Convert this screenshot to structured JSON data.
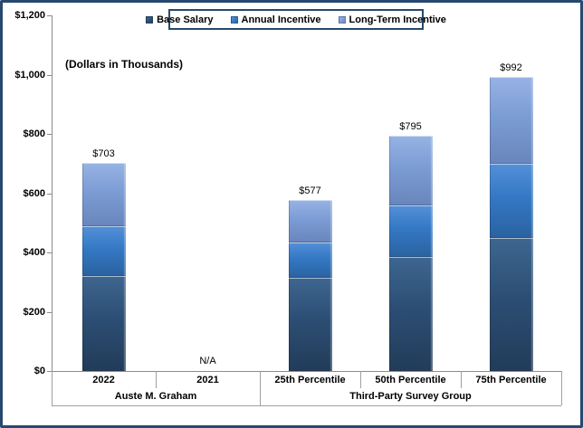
{
  "frame": {
    "border_color": "#27496F",
    "background": "#FFFFFF"
  },
  "units_note": "(Dollars in Thousands)",
  "chart_data": {
    "type": "bar",
    "stacked": true,
    "title": "",
    "ylabel": "(Dollars in Thousands)",
    "ylim": [
      0,
      1200
    ],
    "grid": false,
    "legend_position": "top",
    "y_axis_ticks": [
      {
        "value": 0,
        "label": "$0"
      },
      {
        "value": 200,
        "label": "$200"
      },
      {
        "value": 400,
        "label": "$400"
      },
      {
        "value": 600,
        "label": "$600"
      },
      {
        "value": 800,
        "label": "$800"
      },
      {
        "value": 1000,
        "label": "$1,000"
      },
      {
        "value": 1200,
        "label": "$1,200"
      }
    ],
    "groups": [
      {
        "label": "Auste M. Graham",
        "categories": [
          "2022",
          "2021"
        ]
      },
      {
        "label": "Third-Party Survey Group",
        "categories": [
          "25th Percentile",
          "50th Percentile",
          "75th Percentile"
        ]
      }
    ],
    "categories": [
      "2022",
      "2021",
      "25th Percentile",
      "50th Percentile",
      "75th Percentile"
    ],
    "series": [
      {
        "name": "Base Salary",
        "color": "#2C4E74",
        "values": [
          320,
          null,
          315,
          385,
          450
        ]
      },
      {
        "name": "Annual Incentive",
        "color": "#3478C4",
        "values": [
          170,
          null,
          120,
          175,
          250
        ]
      },
      {
        "name": "Long-Term Incentive",
        "color": "#7C9CD5",
        "values": [
          213,
          null,
          142,
          235,
          292
        ]
      }
    ],
    "totals_labels": [
      "$703",
      "N/A",
      "$577",
      "$795",
      "$992"
    ],
    "totals_values": [
      703,
      null,
      577,
      795,
      992
    ]
  }
}
